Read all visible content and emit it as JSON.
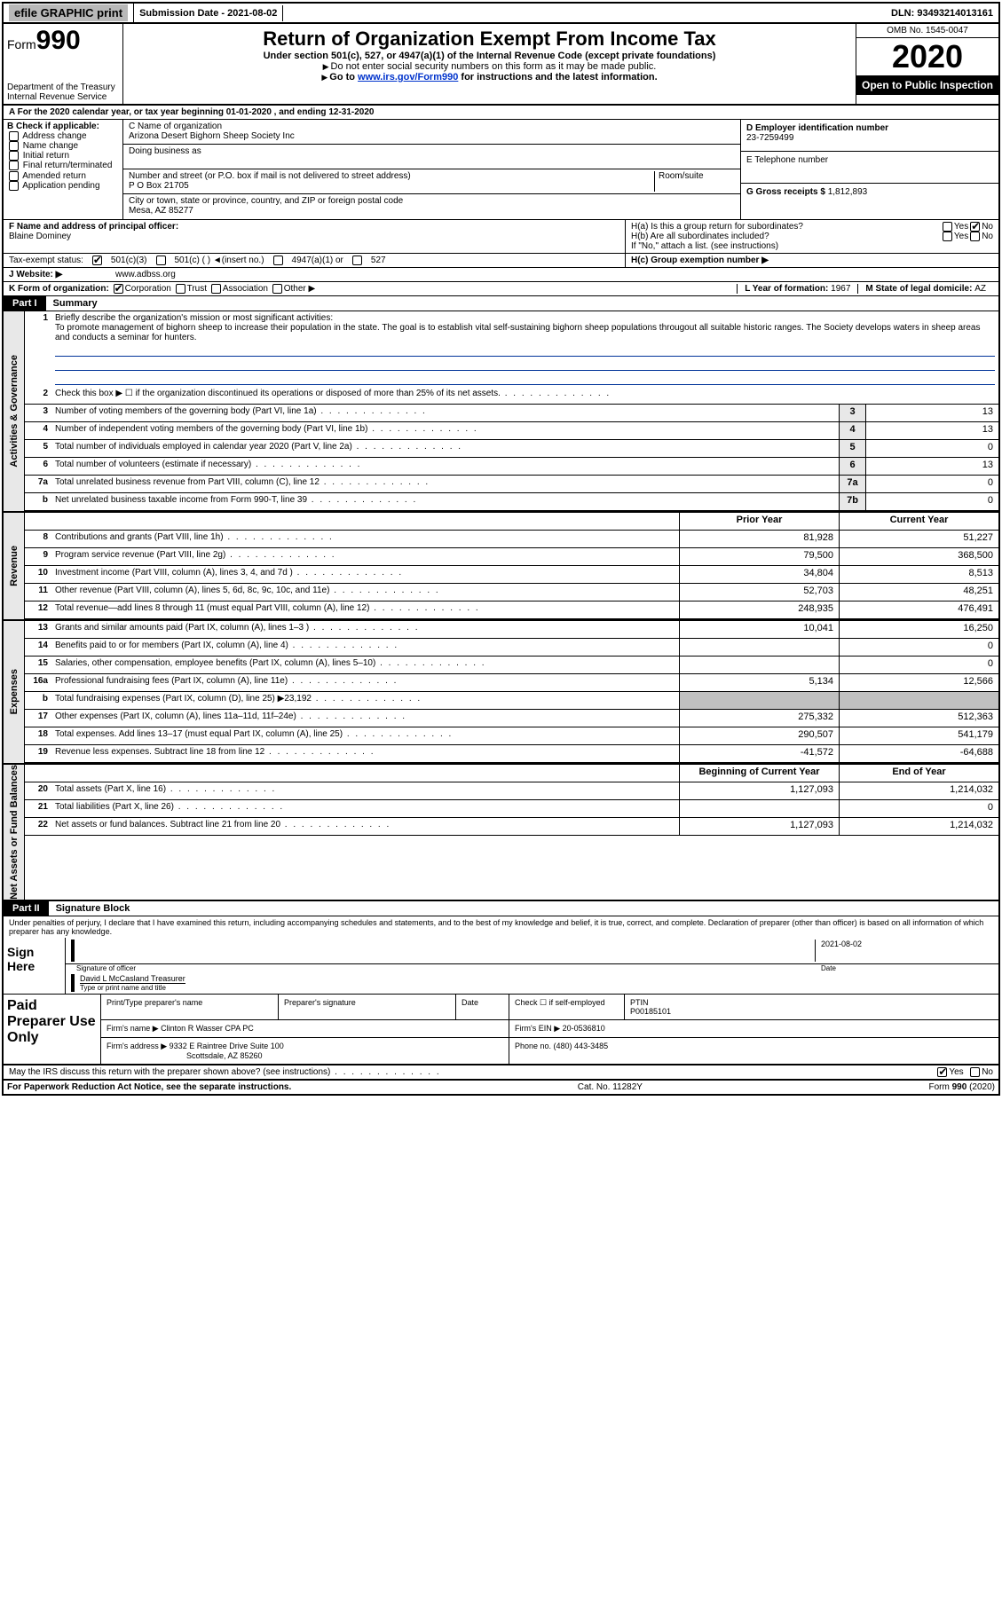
{
  "topbar": {
    "efile": "efile GRAPHIC print",
    "submission_label": "Submission Date - ",
    "submission_date": "2021-08-02",
    "dln_label": "DLN: ",
    "dln": "93493214013161"
  },
  "header": {
    "form_label": "Form",
    "form_num": "990",
    "dept": "Department of the Treasury",
    "irs": "Internal Revenue Service",
    "title": "Return of Organization Exempt From Income Tax",
    "sub1": "Under section 501(c), 527, or 4947(a)(1) of the Internal Revenue Code (except private foundations)",
    "sub2": "Do not enter social security numbers on this form as it may be made public.",
    "sub3_pre": "Go to ",
    "sub3_link": "www.irs.gov/Form990",
    "sub3_post": " for instructions and the latest information.",
    "omb": "OMB No. 1545-0047",
    "year": "2020",
    "open": "Open to Public Inspection"
  },
  "line_a": "A For the 2020 calendar year, or tax year beginning 01-01-2020    , and ending 12-31-2020",
  "col_b": {
    "title": "B Check if applicable:",
    "items": [
      "Address change",
      "Name change",
      "Initial return",
      "Final return/terminated",
      "Amended return",
      "Application pending"
    ]
  },
  "col_c": {
    "name_lbl": "C Name of organization",
    "name": "Arizona Desert Bighorn Sheep Society Inc",
    "dba_lbl": "Doing business as",
    "addr_lbl": "Number and street (or P.O. box if mail is not delivered to street address)",
    "room_lbl": "Room/suite",
    "addr": "P O Box 21705",
    "city_lbl": "City or town, state or province, country, and ZIP or foreign postal code",
    "city": "Mesa, AZ  85277"
  },
  "col_de": {
    "d_lbl": "D Employer identification number",
    "d_val": "23-7259499",
    "e_lbl": "E Telephone number",
    "g_lbl": "G Gross receipts $ ",
    "g_val": "1,812,893"
  },
  "row_f": {
    "f_lbl": "F  Name and address of principal officer:",
    "f_val": "Blaine Dominey",
    "ha_lbl": "H(a)  Is this a group return for subordinates?",
    "hb_lbl": "H(b)  Are all subordinates included?",
    "hb_note": "If \"No,\" attach a list. (see instructions)",
    "yes": "Yes",
    "no": "No"
  },
  "tax_exempt": {
    "lbl": "Tax-exempt status:",
    "c3": "501(c)(3)",
    "c_other": "501(c) (  )  ◄(insert no.)",
    "a1": "4947(a)(1) or",
    "s527": "527",
    "hc_lbl": "H(c)  Group exemption number ▶"
  },
  "website": {
    "lbl": "J   Website: ▶",
    "val": "www.adbss.org"
  },
  "row_k": {
    "k_lbl": "K Form of organization:",
    "corp": "Corporation",
    "trust": "Trust",
    "assoc": "Association",
    "other": "Other ▶",
    "l_lbl": "L Year of formation: ",
    "l_val": "1967",
    "m_lbl": "M State of legal domicile: ",
    "m_val": "AZ"
  },
  "part1": {
    "hdr": "Part I",
    "title": "Summary"
  },
  "mission": {
    "num": "1",
    "lbl": "Briefly describe the organization's mission or most significant activities:",
    "text": "To promote management of bighorn sheep to increase their population in the state. The goal is to establish vital self-sustaining bighorn sheep populations througout all suitable historic ranges. The Society develops waters in sheep areas and conducts a seminar for hunters."
  },
  "gov_rows": [
    {
      "n": "2",
      "t": "Check this box ▶ ☐  if the organization discontinued its operations or disposed of more than 25% of its net assets.",
      "box": "",
      "v": ""
    },
    {
      "n": "3",
      "t": "Number of voting members of the governing body (Part VI, line 1a)",
      "box": "3",
      "v": "13"
    },
    {
      "n": "4",
      "t": "Number of independent voting members of the governing body (Part VI, line 1b)",
      "box": "4",
      "v": "13"
    },
    {
      "n": "5",
      "t": "Total number of individuals employed in calendar year 2020 (Part V, line 2a)",
      "box": "5",
      "v": "0"
    },
    {
      "n": "6",
      "t": "Total number of volunteers (estimate if necessary)",
      "box": "6",
      "v": "13"
    },
    {
      "n": "7a",
      "t": "Total unrelated business revenue from Part VIII, column (C), line 12",
      "box": "7a",
      "v": "0"
    },
    {
      "n": "b",
      "t": "Net unrelated business taxable income from Form 990-T, line 39",
      "box": "7b",
      "v": "0"
    }
  ],
  "side_labels": {
    "gov": "Activities & Governance",
    "rev": "Revenue",
    "exp": "Expenses",
    "net": "Net Assets or Fund Balances"
  },
  "two_col_hdr": {
    "prior": "Prior Year",
    "current": "Current Year"
  },
  "rev_rows": [
    {
      "n": "8",
      "t": "Contributions and grants (Part VIII, line 1h)",
      "p": "81,928",
      "c": "51,227"
    },
    {
      "n": "9",
      "t": "Program service revenue (Part VIII, line 2g)",
      "p": "79,500",
      "c": "368,500"
    },
    {
      "n": "10",
      "t": "Investment income (Part VIII, column (A), lines 3, 4, and 7d )",
      "p": "34,804",
      "c": "8,513"
    },
    {
      "n": "11",
      "t": "Other revenue (Part VIII, column (A), lines 5, 6d, 8c, 9c, 10c, and 11e)",
      "p": "52,703",
      "c": "48,251"
    },
    {
      "n": "12",
      "t": "Total revenue—add lines 8 through 11 (must equal Part VIII, column (A), line 12)",
      "p": "248,935",
      "c": "476,491"
    }
  ],
  "exp_rows": [
    {
      "n": "13",
      "t": "Grants and similar amounts paid (Part IX, column (A), lines 1–3 )",
      "p": "10,041",
      "c": "16,250"
    },
    {
      "n": "14",
      "t": "Benefits paid to or for members (Part IX, column (A), line 4)",
      "p": "",
      "c": "0"
    },
    {
      "n": "15",
      "t": "Salaries, other compensation, employee benefits (Part IX, column (A), lines 5–10)",
      "p": "",
      "c": "0"
    },
    {
      "n": "16a",
      "t": "Professional fundraising fees (Part IX, column (A), line 11e)",
      "p": "5,134",
      "c": "12,566"
    },
    {
      "n": "b",
      "t": "Total fundraising expenses (Part IX, column (D), line 25) ▶23,192",
      "p": "SHADED",
      "c": "SHADED"
    },
    {
      "n": "17",
      "t": "Other expenses (Part IX, column (A), lines 11a–11d, 11f–24e)",
      "p": "275,332",
      "c": "512,363"
    },
    {
      "n": "18",
      "t": "Total expenses. Add lines 13–17 (must equal Part IX, column (A), line 25)",
      "p": "290,507",
      "c": "541,179"
    },
    {
      "n": "19",
      "t": "Revenue less expenses. Subtract line 18 from line 12",
      "p": "-41,572",
      "c": "-64,688"
    }
  ],
  "net_hdr": {
    "begin": "Beginning of Current Year",
    "end": "End of Year"
  },
  "net_rows": [
    {
      "n": "20",
      "t": "Total assets (Part X, line 16)",
      "p": "1,127,093",
      "c": "1,214,032"
    },
    {
      "n": "21",
      "t": "Total liabilities (Part X, line 26)",
      "p": "",
      "c": "0"
    },
    {
      "n": "22",
      "t": "Net assets or fund balances. Subtract line 21 from line 20",
      "p": "1,127,093",
      "c": "1,214,032"
    }
  ],
  "part2": {
    "hdr": "Part II",
    "title": "Signature Block"
  },
  "penalties": "Under penalties of perjury, I declare that I have examined this return, including accompanying schedules and statements, and to the best of my knowledge and belief, it is true, correct, and complete. Declaration of preparer (other than officer) is based on all information of which preparer has any knowledge.",
  "sign": {
    "here": "Sign Here",
    "sig_lbl": "Signature of officer",
    "date_lbl": "Date",
    "date": "2021-08-02",
    "name": "David L McCasland  Treasurer",
    "name_lbl": "Type or print name and title"
  },
  "prep": {
    "title": "Paid Preparer Use Only",
    "r1": {
      "c1": "Print/Type preparer's name",
      "c2": "Preparer's signature",
      "c3": "Date",
      "c4_lbl": "Check ☐  if self-employed",
      "c5_lbl": "PTIN",
      "c5": "P00185101"
    },
    "r2": {
      "lbl": "Firm's name     ▶",
      "val": "Clinton R Wasser CPA PC",
      "ein_lbl": "Firm's EIN ▶",
      "ein": "20-0536810"
    },
    "r3": {
      "lbl": "Firm's address ▶",
      "val1": "9332 E Raintree Drive Suite 100",
      "val2": "Scottsdale, AZ  85260",
      "ph_lbl": "Phone no. ",
      "ph": "(480) 443-3485"
    }
  },
  "discuss": {
    "t": "May the IRS discuss this return with the preparer shown above? (see instructions)",
    "yes": "Yes",
    "no": "No"
  },
  "footer": {
    "l": "For Paperwork Reduction Act Notice, see the separate instructions.",
    "m": "Cat. No. 11282Y",
    "r": "Form 990 (2020)"
  },
  "colors": {
    "black": "#000000",
    "blue": "#003399",
    "gray_btn": "#b8b8b8",
    "gray_side": "#e8e8e8",
    "shaded": "#c0c0c0",
    "link": "#0033cc"
  }
}
